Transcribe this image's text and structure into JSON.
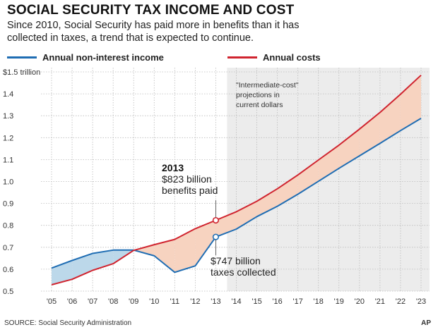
{
  "header": {
    "title": "SOCIAL SECURITY TAX INCOME AND COST",
    "subtitle": "Since 2010, Social Security has paid more in benefits than it has collected in taxes, a trend that is expected to continue."
  },
  "colors": {
    "income": "#1f6db3",
    "costs": "#d0242f",
    "deficit_fill": "#f7d3c0",
    "surplus_fill": "#bcd8ea",
    "projection_bg": "#ececec",
    "grid": "#bbbbbb"
  },
  "footer": {
    "source": "SOURCE: Social Security Administration",
    "credit": "AP"
  },
  "chart_data": {
    "type": "line",
    "x": [
      2005,
      2006,
      2007,
      2008,
      2009,
      2010,
      2011,
      2012,
      2013,
      2014,
      2015,
      2016,
      2017,
      2018,
      2019,
      2020,
      2021,
      2022,
      2023
    ],
    "x_tick_labels": [
      "'05",
      "'06",
      "'07",
      "'08",
      "'09",
      "'10",
      "'11",
      "'12",
      "'13",
      "'14",
      "'15",
      "'16",
      "'17",
      "'18",
      "'19",
      "'20",
      "'21",
      "'22",
      "'23"
    ],
    "y_tick_labels": [
      "$1.5 trillion",
      "1.4",
      "1.3",
      "1.2",
      "1.1",
      "1.0",
      "0.9",
      "0.8",
      "0.7",
      "0.6",
      "0.5"
    ],
    "y_ticks": [
      1.5,
      1.4,
      1.3,
      1.2,
      1.1,
      1.0,
      0.9,
      0.8,
      0.7,
      0.6,
      0.5
    ],
    "ylim": [
      0.5,
      1.5
    ],
    "xlim": [
      2005,
      2023
    ],
    "series": [
      {
        "name": "Annual non-interest income",
        "values": [
          0.605,
          0.64,
          0.672,
          0.687,
          0.687,
          0.661,
          0.586,
          0.615,
          0.747,
          0.783,
          0.84,
          0.887,
          0.942,
          1.001,
          1.06,
          1.117,
          1.174,
          1.232,
          1.288
        ]
      },
      {
        "name": "Annual costs",
        "values": [
          0.529,
          0.554,
          0.595,
          0.625,
          0.686,
          0.712,
          0.736,
          0.785,
          0.823,
          0.862,
          0.91,
          0.967,
          1.03,
          1.098,
          1.166,
          1.239,
          1.315,
          1.398,
          1.485
        ]
      }
    ],
    "projection": {
      "start": 2013.55,
      "end": 2023,
      "label": "\"Intermediate-cost\" projections in current dollars"
    },
    "annotations": {
      "costs_2013": {
        "year_label": "2013",
        "line1": "$823 billion",
        "line2": "benefits paid"
      },
      "income_2013": {
        "line1": "$747 billion",
        "line2": "taxes collected"
      }
    },
    "grid": true
  }
}
